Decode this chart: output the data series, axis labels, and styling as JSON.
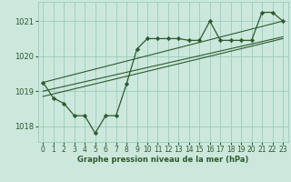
{
  "title": "Graphe pression niveau de la mer (hPa)",
  "bg_color": "#cce8dd",
  "grid_color": "#99ccbb",
  "line_color": "#2d5a2d",
  "x_ticks": [
    0,
    1,
    2,
    3,
    4,
    5,
    6,
    7,
    8,
    9,
    10,
    11,
    12,
    13,
    14,
    15,
    16,
    17,
    18,
    19,
    20,
    21,
    22,
    23
  ],
  "x_tick_labels": [
    "0",
    "1",
    "2",
    "3",
    "4",
    "5",
    "6",
    "7",
    "8",
    "9",
    "10",
    "11",
    "12",
    "13",
    "14",
    "15",
    "16",
    "17",
    "18",
    "19",
    "20",
    "21",
    "22",
    "23"
  ],
  "y_ticks": [
    1018,
    1019,
    1020,
    1021
  ],
  "ylim": [
    1017.55,
    1021.55
  ],
  "xlim": [
    -0.5,
    23.5
  ],
  "main_series_x": [
    0,
    1,
    2,
    3,
    4,
    5,
    6,
    7,
    8,
    9,
    10,
    11,
    12,
    13,
    14,
    15,
    16,
    17,
    18,
    19,
    20,
    21,
    22,
    23
  ],
  "main_series_y": [
    1019.25,
    1018.8,
    1018.65,
    1018.3,
    1018.3,
    1017.8,
    1018.3,
    1018.3,
    1019.2,
    1020.2,
    1020.5,
    1020.5,
    1020.5,
    1020.5,
    1020.45,
    1020.45,
    1021.0,
    1020.45,
    1020.45,
    1020.45,
    1020.45,
    1021.25,
    1021.25,
    1021.0
  ],
  "line1_x": [
    0,
    23
  ],
  "line1_y": [
    1018.85,
    1020.5
  ],
  "line2_x": [
    0,
    23
  ],
  "line2_y": [
    1019.0,
    1020.55
  ],
  "line3_x": [
    0,
    23
  ],
  "line3_y": [
    1019.25,
    1021.0
  ],
  "title_fontsize": 6.0,
  "tick_fontsize": 5.5
}
